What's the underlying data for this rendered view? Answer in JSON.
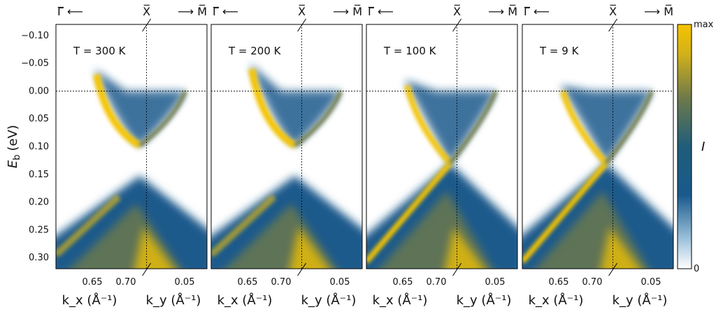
{
  "figure": {
    "ylabel_main": "E",
    "ylabel_sub": "b",
    "ylabel_unit": "(eV)",
    "colorbar": {
      "label": "I",
      "max_label": "max",
      "min_label": "0"
    },
    "colors": {
      "band_low": "#1a5a8c",
      "band_high": "#f5c400",
      "guide": "#000000"
    }
  },
  "chart_data": [
    {
      "type": "heatmap",
      "panel_label": "T = 300 K",
      "temperature_K": 300,
      "y_axis": {
        "ticks": [
          "−0.10",
          "−0.05",
          "0.00",
          "0.05",
          "0.10",
          "0.15",
          "0.20",
          "0.25",
          "0.30"
        ],
        "range": [
          -0.12,
          0.32
        ],
        "inverted": true
      },
      "x_axis": {
        "left_label": "k_x (Å⁻¹)",
        "left_ticks": [
          "0.65",
          "0.70"
        ],
        "right_label": "k_y (Å⁻¹)",
        "right_ticks": [
          "0.05"
        ]
      },
      "top_labels": {
        "left": "Γ̅ ⟵",
        "middle": "X̅",
        "right": "⟶ M̅"
      },
      "features": {
        "upper_band_top_eV": -0.04,
        "crossing_eV": 0.13,
        "gap_visible": true,
        "fermi_level_eV": 0.0
      }
    },
    {
      "type": "heatmap",
      "panel_label": "T = 200 K",
      "temperature_K": 200,
      "x_axis": {
        "left_ticks": [
          "0.65",
          "0.70"
        ],
        "right_ticks": [
          "0.05"
        ]
      },
      "top_labels": {
        "left": "Γ̅ ⟵",
        "middle": "X̅",
        "right": "⟶ M̅"
      },
      "features": {
        "upper_band_top_eV": -0.05,
        "crossing_eV": 0.13,
        "gap_visible": true,
        "fermi_level_eV": 0.0
      }
    },
    {
      "type": "heatmap",
      "panel_label": "T = 100 K",
      "temperature_K": 100,
      "x_axis": {
        "left_ticks": [
          "0.65",
          "0.70"
        ],
        "right_ticks": [
          "0.05"
        ]
      },
      "top_labels": {
        "left": "Γ̅ ⟵",
        "middle": "X̅",
        "right": "⟶ M̅"
      },
      "features": {
        "upper_band_top_eV": -0.02,
        "crossing_eV": 0.13,
        "gap_visible": false,
        "fermi_level_eV": 0.0
      }
    },
    {
      "type": "heatmap",
      "panel_label": "T = 9 K",
      "temperature_K": 9,
      "x_axis": {
        "left_ticks": [
          "0.65",
          "0.70"
        ],
        "right_ticks": [
          "0.05"
        ]
      },
      "top_labels": {
        "left": "Γ̅ ⟵",
        "middle": "X̅",
        "right": "⟶ M̅"
      },
      "features": {
        "upper_band_top_eV": -0.01,
        "crossing_eV": 0.13,
        "gap_visible": false,
        "fermi_level_eV": 0.0
      }
    }
  ]
}
